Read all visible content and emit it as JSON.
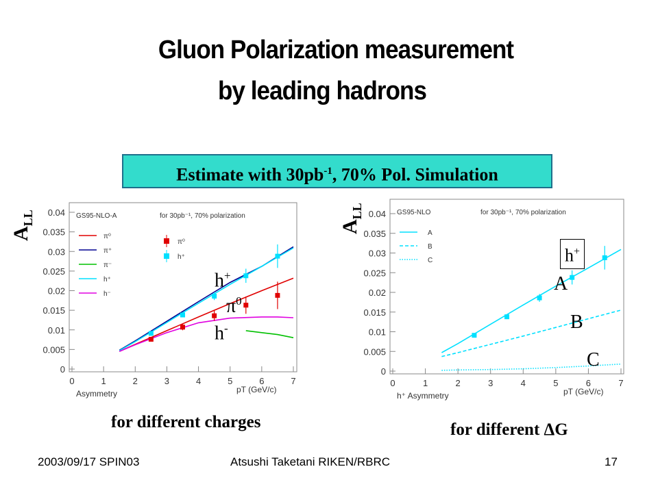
{
  "slide": {
    "title_line1": "Gluon Polarization measurement",
    "title_line2": "by leading hadrons",
    "estimate_prefix": "Estimate with 30pb",
    "estimate_sup": "-1",
    "estimate_suffix": ",   70% Pol.   Simulation",
    "caption_left": "for different charges",
    "caption_right_prefix": "for different ",
    "caption_right_symbol": "ΔG",
    "footer_left": "2003/09/17 SPIN03",
    "footer_center": "Atsushi Taketani RIKEN/RBRC",
    "footer_right": "17",
    "ylabel_main": "A",
    "ylabel_sub": "LL",
    "left_overlay": {
      "hplus": "h",
      "hplus_sup": "+",
      "pi0": "π",
      "pi0_sup": "0",
      "hminus": "h",
      "hminus_sup": "-"
    },
    "right_overlay": {
      "box": "h",
      "box_sup": "+",
      "A": "A",
      "B": "B",
      "C": "C"
    },
    "colors": {
      "estimate_bg": "#33dccc",
      "cyan": "#00e0ff",
      "red": "#e00000",
      "blue": "#000090",
      "green": "#00c000",
      "magenta": "#e000e0"
    }
  },
  "chart_data": [
    {
      "type": "line",
      "title": "",
      "header_left": "GS95-NLO-A",
      "header_right": "for 30pb⁻¹, 70% polarization",
      "xlabel": "Asymmetry",
      "xunit": "pT (GeV/c)",
      "ylabel": "A LL",
      "xlim": [
        0,
        7
      ],
      "ylim": [
        0,
        0.04
      ],
      "xticks": [
        "0",
        "1",
        "2",
        "3",
        "4",
        "5",
        "6",
        "7"
      ],
      "yticks": [
        "0",
        "0.005",
        "0.01",
        "0.015",
        "0.02",
        "0.025",
        "0.03",
        "0.035",
        "0.04"
      ],
      "legend_placement": "top-left",
      "legend_lines": [
        "π⁰",
        "π⁺",
        "π⁻",
        "h⁺",
        "h⁻"
      ],
      "legend_markers": [
        "π⁰",
        "h⁺"
      ],
      "series": [
        {
          "name": "π⁰",
          "color": "#e00000",
          "x": [
            1.5,
            2,
            3,
            4,
            5,
            6,
            7
          ],
          "y": [
            0.0045,
            0.0063,
            0.0098,
            0.0133,
            0.0167,
            0.02,
            0.0232
          ]
        },
        {
          "name": "π⁺",
          "color": "#000090",
          "x": [
            1.5,
            2,
            3,
            4,
            5,
            6,
            7
          ],
          "y": [
            0.0048,
            0.0072,
            0.0122,
            0.0172,
            0.0221,
            0.0262,
            0.0312
          ]
        },
        {
          "name": "π⁻",
          "color": "#00c000",
          "x": [
            5.5,
            6,
            6.5,
            7
          ],
          "y": [
            0.0098,
            0.0093,
            0.0088,
            0.008
          ]
        },
        {
          "name": "h⁺",
          "color": "#00e0ff",
          "x": [
            1.5,
            2,
            3,
            4,
            5,
            6,
            7
          ],
          "y": [
            0.0047,
            0.007,
            0.0119,
            0.0168,
            0.0216,
            0.0262,
            0.0309
          ]
        },
        {
          "name": "h⁻",
          "color": "#e000e0",
          "x": [
            1.5,
            2,
            3,
            4,
            5,
            6,
            6.5,
            7
          ],
          "y": [
            0.0045,
            0.0062,
            0.0093,
            0.0118,
            0.013,
            0.0133,
            0.0133,
            0.0131
          ]
        }
      ],
      "points": [
        {
          "name": "π⁰",
          "color": "#e00000",
          "x": [
            2.5,
            3.5,
            4.5,
            5.5,
            6.5
          ],
          "y": [
            0.0076,
            0.0107,
            0.0136,
            0.0163,
            0.0188
          ],
          "err": [
            0.0005,
            0.0008,
            0.0013,
            0.0022,
            0.0035
          ]
        },
        {
          "name": "h⁺",
          "color": "#00e0ff",
          "x": [
            2.5,
            3.5,
            4.5,
            5.5,
            6.5
          ],
          "y": [
            0.0091,
            0.0138,
            0.0186,
            0.0238,
            0.0288
          ],
          "err": [
            0.0004,
            0.0006,
            0.001,
            0.0018,
            0.003
          ]
        }
      ]
    },
    {
      "type": "line",
      "title": "",
      "header_left": "GS95-NLO",
      "header_right": "for 30pb⁻¹, 70% polarization",
      "xlabel": "h⁺ Asymmetry",
      "xunit": "pT (GeV/c)",
      "ylabel": "A LL",
      "xlim": [
        0,
        7
      ],
      "ylim": [
        0,
        0.04
      ],
      "xticks": [
        "0",
        "1",
        "2",
        "3",
        "4",
        "5",
        "6",
        "7"
      ],
      "yticks": [
        "0",
        "0.005",
        "0.01",
        "0.015",
        "0.02",
        "0.025",
        "0.03",
        "0.035",
        "0.04"
      ],
      "legend_placement": "top-left",
      "legend_lines": [
        "A",
        "B",
        "C"
      ],
      "series": [
        {
          "name": "A",
          "color": "#00e0ff",
          "style": "solid",
          "x": [
            1.5,
            2,
            3,
            4,
            5,
            6,
            7
          ],
          "y": [
            0.0047,
            0.007,
            0.0119,
            0.0168,
            0.0216,
            0.0262,
            0.0309
          ]
        },
        {
          "name": "B",
          "color": "#00e0ff",
          "style": "dashed",
          "x": [
            1.5,
            2,
            3,
            4,
            5,
            6,
            7
          ],
          "y": [
            0.0037,
            0.0047,
            0.0068,
            0.0089,
            0.0111,
            0.0133,
            0.0155
          ]
        },
        {
          "name": "C",
          "color": "#00e0ff",
          "style": "dotted",
          "x": [
            1.5,
            2,
            3,
            4,
            5,
            6,
            7
          ],
          "y": [
            0.0002,
            0.0003,
            0.0004,
            0.0006,
            0.0009,
            0.0013,
            0.0018
          ]
        }
      ],
      "points": [
        {
          "name": "A",
          "color": "#00e0ff",
          "x": [
            2.5,
            3.5,
            4.5,
            5.5,
            6.5
          ],
          "y": [
            0.0091,
            0.0138,
            0.0186,
            0.0238,
            0.0288
          ],
          "err": [
            0.0004,
            0.0006,
            0.001,
            0.0018,
            0.003
          ]
        }
      ]
    }
  ]
}
